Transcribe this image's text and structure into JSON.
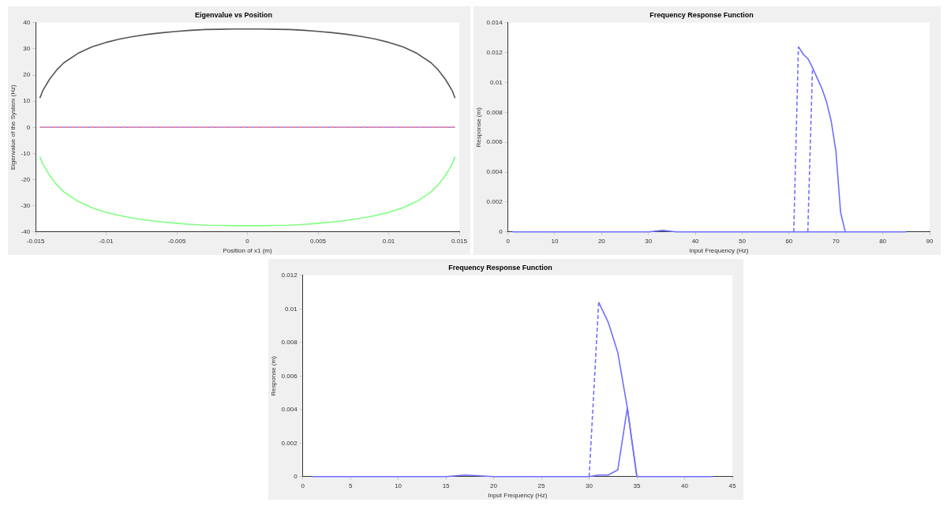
{
  "chart_data": [
    {
      "type": "line",
      "title": "Eigenvalue vs Position",
      "xlabel": "Position of x1 (m)",
      "ylabel": "Eigenvalue of the System (Hz)",
      "xlim": [
        -0.015,
        0.015
      ],
      "xticks": [
        -0.015,
        -0.01,
        -0.005,
        0,
        0.005,
        0.01,
        0.015
      ],
      "ylim": [
        -40,
        40
      ],
      "yticks": [
        -40,
        -30,
        -20,
        -10,
        0,
        10,
        20,
        30,
        40
      ],
      "grid": false,
      "marker": "none",
      "series": [
        {
          "color": "#555555",
          "x": [
            -0.0147,
            -0.0145,
            -0.014,
            -0.0135,
            -0.013,
            -0.012,
            -0.011,
            -0.01,
            -0.009,
            -0.008,
            -0.007,
            -0.006,
            -0.005,
            -0.004,
            -0.003,
            -0.002,
            -0.001,
            0,
            0.001,
            0.002,
            0.003,
            0.004,
            0.005,
            0.006,
            0.007,
            0.008,
            0.009,
            0.01,
            0.011,
            0.012,
            0.013,
            0.0135,
            0.014,
            0.0145,
            0.0147
          ],
          "values": [
            11.2,
            14,
            18.5,
            22,
            24.7,
            28.3,
            30.8,
            32.5,
            33.8,
            34.8,
            35.6,
            36.2,
            36.7,
            37.1,
            37.4,
            37.5,
            37.6,
            37.6,
            37.6,
            37.5,
            37.4,
            37.1,
            36.7,
            36.2,
            35.6,
            34.8,
            33.8,
            32.5,
            30.8,
            28.3,
            24.7,
            22,
            18.5,
            14,
            11.2
          ]
        },
        {
          "color": "#80ff80",
          "x": [
            -0.0147,
            -0.0145,
            -0.014,
            -0.0135,
            -0.013,
            -0.012,
            -0.011,
            -0.01,
            -0.009,
            -0.008,
            -0.007,
            -0.006,
            -0.005,
            -0.004,
            -0.003,
            -0.002,
            -0.001,
            0,
            0.001,
            0.002,
            0.003,
            0.004,
            0.005,
            0.006,
            0.007,
            0.008,
            0.009,
            0.01,
            0.011,
            0.012,
            0.013,
            0.0135,
            0.014,
            0.0145,
            0.0147
          ],
          "values": [
            -11.2,
            -14,
            -18.5,
            -22,
            -24.7,
            -28.3,
            -30.8,
            -32.5,
            -33.8,
            -34.8,
            -35.6,
            -36.2,
            -36.7,
            -37.1,
            -37.4,
            -37.5,
            -37.6,
            -37.6,
            -37.6,
            -37.5,
            -37.4,
            -37.1,
            -36.7,
            -36.2,
            -35.6,
            -34.8,
            -33.8,
            -32.5,
            -30.8,
            -28.3,
            -24.7,
            -22,
            -18.5,
            -14,
            -11.2
          ]
        },
        {
          "color": "#8080ff",
          "x": [
            -0.0147,
            0.0147
          ],
          "values": [
            0,
            0
          ]
        },
        {
          "color": "#ff8080",
          "x": [
            -0.0147,
            0.0147
          ],
          "values": [
            0,
            0
          ],
          "line_style": "dashed"
        }
      ]
    },
    {
      "type": "line",
      "title": "Frequency Response Function",
      "xlabel": "Input Frequency (Hz)",
      "ylabel": "Response (m)",
      "xlim": [
        0,
        90
      ],
      "xticks": [
        0,
        10,
        20,
        30,
        40,
        50,
        60,
        70,
        80,
        90
      ],
      "ylim": [
        0,
        0.014
      ],
      "yticks": [
        0,
        0.002,
        0.004,
        0.006,
        0.008,
        0.01,
        0.012,
        0.014
      ],
      "grid": false,
      "marker": "none",
      "series": [
        {
          "color": "#6f6fff",
          "x": [
            1,
            10,
            20,
            30,
            33,
            36,
            40,
            50,
            61,
            64,
            72,
            80,
            85
          ],
          "values": [
            0,
            0,
            0,
            0,
            0.0001,
            0,
            0,
            0,
            0,
            0,
            0,
            0,
            0
          ]
        },
        {
          "color": "#6f6fff",
          "x": [
            62,
            63,
            64,
            65,
            66,
            67,
            68,
            69,
            70,
            71,
            72
          ],
          "values": [
            0.0124,
            0.0119,
            0.0116,
            0.011,
            0.0103,
            0.0096,
            0.0087,
            0.0074,
            0.0054,
            0.0013,
            0
          ]
        },
        {
          "color": "#6f6fff",
          "x": [
            61,
            62
          ],
          "values": [
            0,
            0.0124
          ],
          "line_style": "dashed"
        },
        {
          "color": "#6f6fff",
          "x": [
            64,
            65
          ],
          "values": [
            0,
            0.011
          ],
          "line_style": "dashed"
        }
      ]
    },
    {
      "type": "line",
      "title": "Frequency Response Function",
      "xlabel": "Input Frequency (Hz)",
      "ylabel": "Response (m)",
      "xlim": [
        0,
        45
      ],
      "xticks": [
        0,
        5,
        10,
        15,
        20,
        25,
        30,
        35,
        40,
        45
      ],
      "ylim": [
        0,
        0.012
      ],
      "yticks": [
        0,
        0.002,
        0.004,
        0.006,
        0.008,
        0.01,
        0.012
      ],
      "grid": false,
      "marker": "none",
      "series": [
        {
          "color": "#6f6fff",
          "x": [
            1,
            5,
            10,
            15,
            17,
            20,
            25,
            30,
            31,
            32,
            33,
            34,
            35,
            36,
            40,
            43
          ],
          "values": [
            0,
            0,
            0,
            0,
            0.0001,
            0,
            0,
            0,
            0.0001,
            0.0001,
            0.0004,
            0.0041,
            0,
            0,
            0,
            0
          ]
        },
        {
          "color": "#6f6fff",
          "x": [
            31,
            32,
            33,
            34,
            35
          ],
          "values": [
            0.0104,
            0.0092,
            0.0074,
            0.0041,
            0
          ]
        },
        {
          "color": "#6f6fff",
          "x": [
            30,
            31
          ],
          "values": [
            0,
            0.0104
          ],
          "line_style": "dashed"
        }
      ]
    }
  ]
}
